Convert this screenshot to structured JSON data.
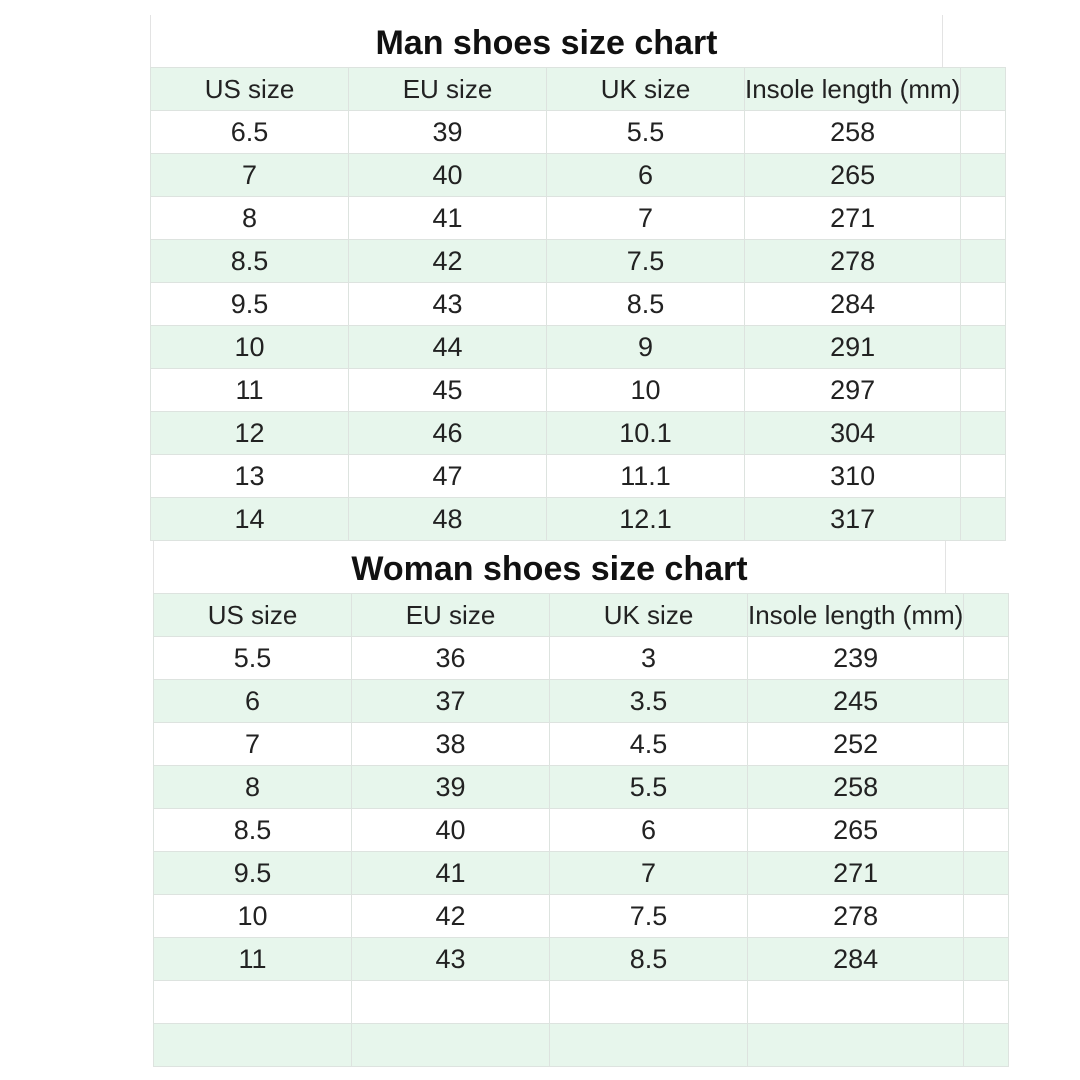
{
  "colors": {
    "row_alt": "#e7f6ec",
    "grid": "#dde3df"
  },
  "man": {
    "title": "Man shoes size chart",
    "headers": [
      "US size",
      "EU size",
      "UK size",
      "Insole length (mm)"
    ],
    "rows": [
      [
        "6.5",
        "39",
        "5.5",
        "258"
      ],
      [
        "7",
        "40",
        "6",
        "265"
      ],
      [
        "8",
        "41",
        "7",
        "271"
      ],
      [
        "8.5",
        "42",
        "7.5",
        "278"
      ],
      [
        "9.5",
        "43",
        "8.5",
        "284"
      ],
      [
        "10",
        "44",
        "9",
        "291"
      ],
      [
        "11",
        "45",
        "10",
        "297"
      ],
      [
        "12",
        "46",
        "10.1",
        "304"
      ],
      [
        "13",
        "47",
        "11.1",
        "310"
      ],
      [
        "14",
        "48",
        "12.1",
        "317"
      ]
    ]
  },
  "woman": {
    "title": "Woman shoes size chart",
    "headers": [
      "US size",
      "EU size",
      "UK size",
      "Insole length (mm)"
    ],
    "rows": [
      [
        "5.5",
        "36",
        "3",
        "239"
      ],
      [
        "6",
        "37",
        "3.5",
        "245"
      ],
      [
        "7",
        "38",
        "4.5",
        "252"
      ],
      [
        "8",
        "39",
        "5.5",
        "258"
      ],
      [
        "8.5",
        "40",
        "6",
        "265"
      ],
      [
        "9.5",
        "41",
        "7",
        "271"
      ],
      [
        "10",
        "42",
        "7.5",
        "278"
      ],
      [
        "11",
        "43",
        "8.5",
        "284"
      ],
      [
        "",
        "",
        "",
        ""
      ],
      [
        "",
        "",
        "",
        ""
      ]
    ]
  }
}
